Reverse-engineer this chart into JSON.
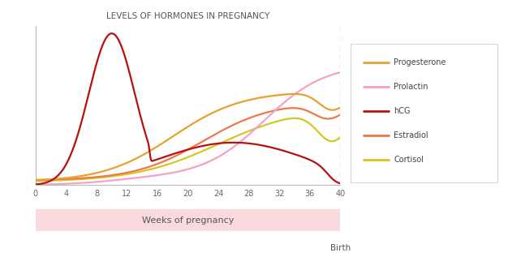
{
  "title": "LEVELS OF HORMONES IN PREGNANCY",
  "xlabel": "Weeks of pregnancy",
  "birth_label": "Birth",
  "x_ticks": [
    0,
    4,
    8,
    12,
    16,
    20,
    24,
    28,
    32,
    36,
    40
  ],
  "x_max": 40,
  "legend": [
    {
      "label": "Progesterone",
      "color": "#E8A030"
    },
    {
      "label": "Prolactin",
      "color": "#F4A0C8"
    },
    {
      "label": "hCG",
      "color": "#B81010"
    },
    {
      "label": "Estradiol",
      "color": "#F07848"
    },
    {
      "label": "Cortisol",
      "color": "#D4C820"
    }
  ],
  "bg_color": "#FFFFFF",
  "plot_bg": "#FFFFFF",
  "spine_color": "#BBBBBB",
  "tick_color": "#666666",
  "title_color": "#555555",
  "dashed_line_color": "#AAAAAA",
  "pink_band_color": "#FADADD",
  "legend_edge_color": "#CCCCCC"
}
